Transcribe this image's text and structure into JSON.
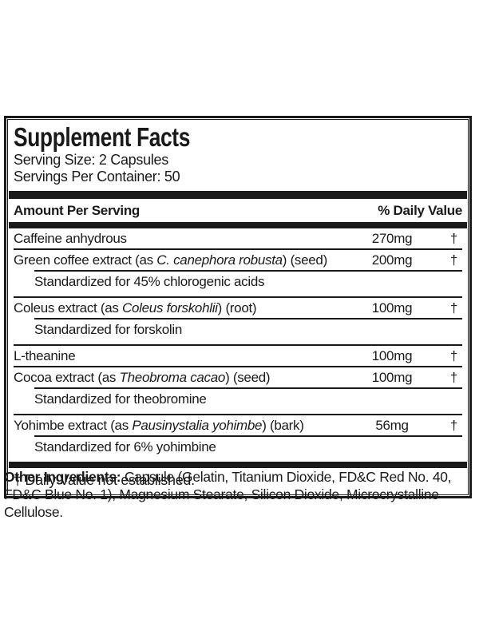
{
  "supplement_facts": {
    "title": "Supplement Facts",
    "serving_size": "Serving Size: 2 Capsules",
    "servings_per_container": "Servings Per Container: 50",
    "columns": {
      "amount_header": "Amount Per Serving",
      "daily_value_header": "% Daily Value"
    },
    "rows": [
      {
        "type": "main",
        "prefix": "Caffeine anhydrous",
        "italic": "",
        "suffix": "",
        "amount": "270mg",
        "daily_value": "†"
      },
      {
        "type": "main",
        "prefix": "Green coffee extract (as ",
        "italic": "C. canephora robusta",
        "suffix": ") (seed)",
        "amount": "200mg",
        "daily_value": "†"
      },
      {
        "type": "sub",
        "prefix": "Standardized for 45% chlorogenic acids",
        "italic": "",
        "suffix": "",
        "amount": "",
        "daily_value": ""
      },
      {
        "type": "main",
        "prefix": "Coleus extract (as ",
        "italic": "Coleus forskohlii",
        "suffix": ") (root)",
        "amount": "100mg",
        "daily_value": "†"
      },
      {
        "type": "sub",
        "prefix": "Standardized for forskolin",
        "italic": "",
        "suffix": "",
        "amount": "",
        "daily_value": ""
      },
      {
        "type": "main",
        "prefix": "L-theanine",
        "italic": "",
        "suffix": "",
        "amount": "100mg",
        "daily_value": "†"
      },
      {
        "type": "main",
        "prefix": "Cocoa extract (as ",
        "italic": "Theobroma cacao",
        "suffix": ") (seed)",
        "amount": "100mg",
        "daily_value": "†"
      },
      {
        "type": "sub",
        "prefix": "Standardized for theobromine",
        "italic": "",
        "suffix": "",
        "amount": "",
        "daily_value": ""
      },
      {
        "type": "main",
        "prefix": "Yohimbe extract (as ",
        "italic": "Pausinystalia yohimbe",
        "suffix": ") (bark)",
        "amount": "56mg",
        "daily_value": "†"
      },
      {
        "type": "sub",
        "prefix": "Standardized for 6% yohimbine",
        "italic": "",
        "suffix": "",
        "amount": "",
        "daily_value": ""
      }
    ],
    "footnote": "† Daily Value not established."
  },
  "other_ingredients": {
    "label": "Other Ingredients:",
    "text": " Capsule (Gelatin, Titanium Dioxide, FD&C Red No. 40, FD&C Blue No. 1), Magnesium Stearate, Silicon Dioxide, Microcrystalline Cellulose."
  },
  "colors": {
    "ink": "#1a1a1a",
    "background": "#ffffff"
  }
}
